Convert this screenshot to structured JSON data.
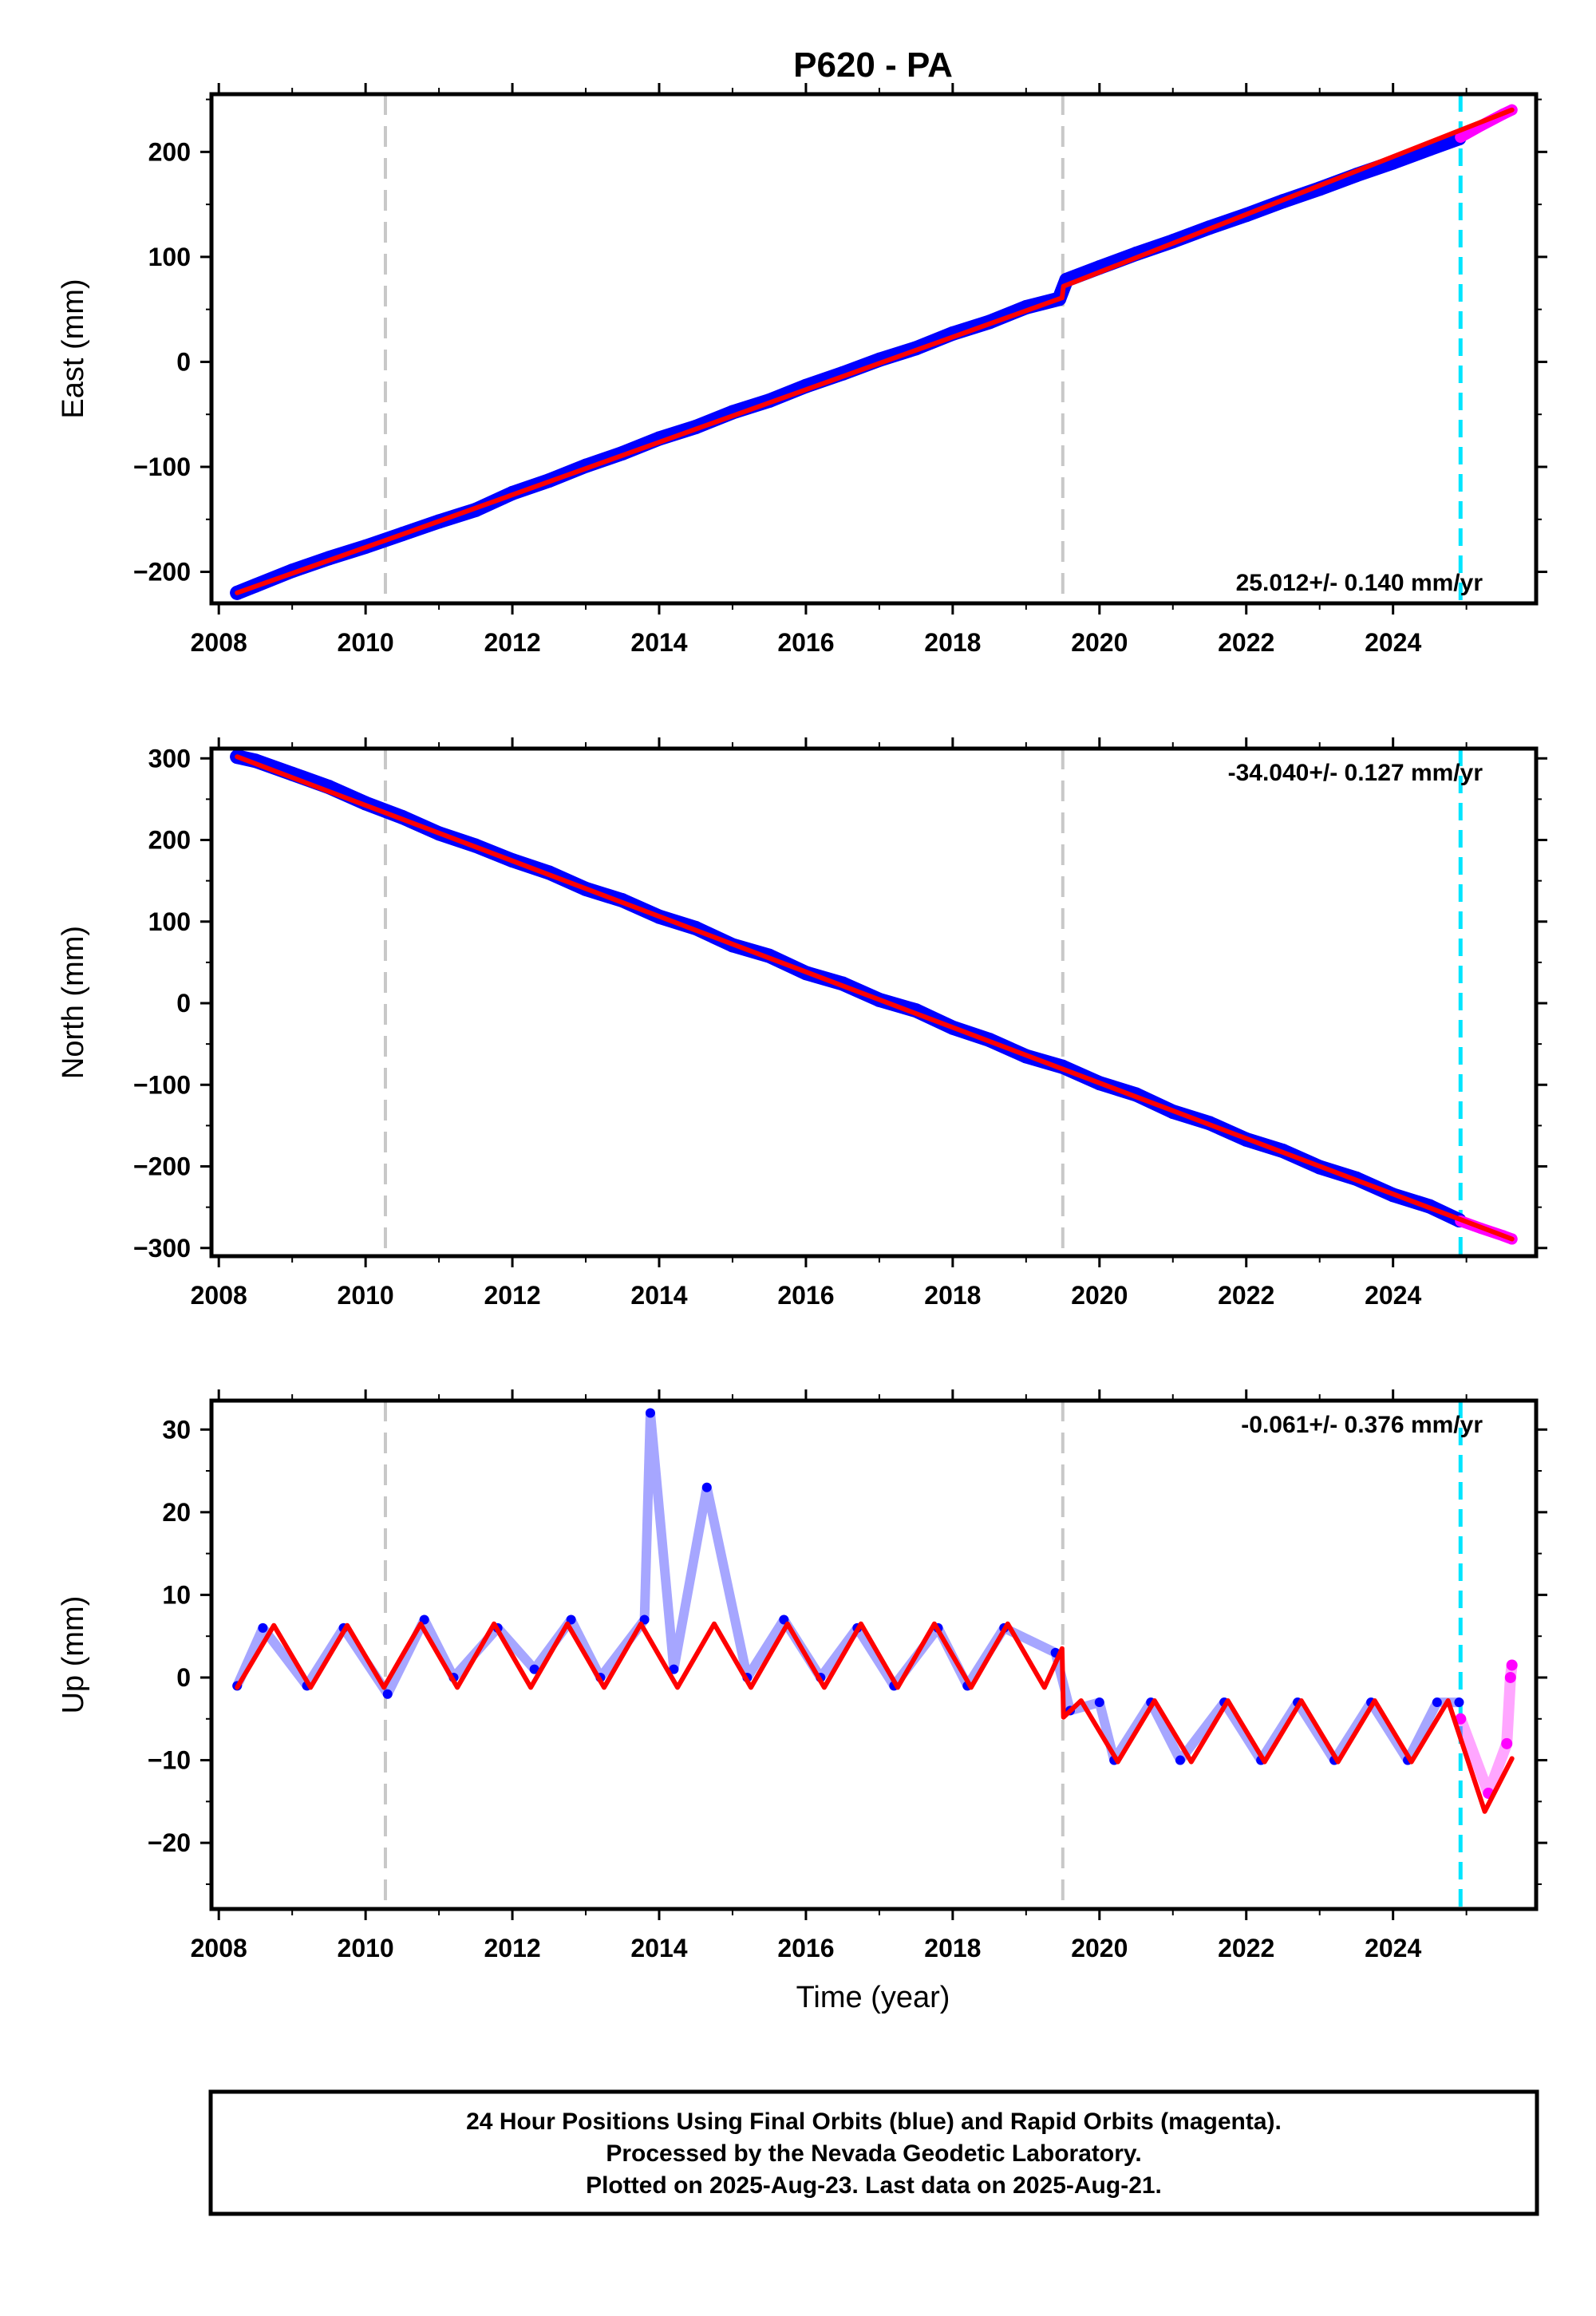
{
  "title": "P620 - PA",
  "xlabel": "Time (year)",
  "footer": {
    "line1": "24 Hour Positions Using Final Orbits (blue) and Rapid Orbits (magenta).",
    "line2": "Processed by the Nevada Geodetic Laboratory.",
    "line3": "Plotted on 2025-Aug-23. Last data on 2025-Aug-21."
  },
  "colors": {
    "final_orbits": "#0000ff",
    "rapid_orbits": "#ff00ff",
    "model": "#ff0000",
    "equipment_change": "#c8c8c8",
    "rapid_start": "#00e5ff"
  },
  "chart_data": [
    {
      "type": "scatter",
      "component": "east",
      "ylabel": "East (mm)",
      "rate_label": "25.012+/- 0.140 mm/yr",
      "rate_placement": "bottom-right",
      "xlim": [
        2007.9,
        2025.95
      ],
      "ylim": [
        -230,
        255
      ],
      "x_ticks": [
        2008,
        2010,
        2012,
        2014,
        2016,
        2018,
        2020,
        2022,
        2024
      ],
      "x_tick_labels": [
        "2008",
        "2010",
        "2012",
        "2014",
        "2016",
        "2018",
        "2020",
        "2022",
        "2024"
      ],
      "y_ticks": [
        -200,
        -100,
        0,
        100,
        200
      ],
      "y_tick_labels": [
        "−200",
        "−100",
        "0",
        "100",
        "200"
      ],
      "dashed_lines": [
        {
          "x": 2010.27,
          "style": "equipment_change"
        },
        {
          "x": 2019.5,
          "style": "equipment_change"
        },
        {
          "x": 2024.92,
          "style": "rapid_start"
        }
      ],
      "series": [
        {
          "role": "final_orbits",
          "x": [
            2008.25,
            2008.5,
            2009.0,
            2009.5,
            2010.0,
            2010.5,
            2011.0,
            2011.5,
            2012.0,
            2012.5,
            2013.0,
            2013.5,
            2014.0,
            2014.5,
            2015.0,
            2015.5,
            2016.0,
            2016.5,
            2017.0,
            2017.5,
            2018.0,
            2018.5,
            2019.0,
            2019.45,
            2019.55,
            2020.0,
            2020.5,
            2021.0,
            2021.5,
            2022.0,
            2022.5,
            2023.0,
            2023.5,
            2024.0,
            2024.5,
            2024.9
          ],
          "y": [
            -220,
            -213,
            -199,
            -187,
            -176,
            -164,
            -152,
            -141,
            -125,
            -113,
            -99,
            -87,
            -73,
            -62,
            -48,
            -37,
            -23,
            -11,
            2,
            13,
            27,
            38,
            52,
            60,
            78,
            90,
            103,
            115,
            128,
            140,
            153,
            165,
            178,
            190,
            203,
            213
          ]
        },
        {
          "role": "rapid_orbits",
          "x": [
            2024.92,
            2025.2,
            2025.5,
            2025.62
          ],
          "y": [
            214,
            225,
            236,
            240
          ]
        },
        {
          "role": "model",
          "x": [
            2008.25,
            2010.27,
            2019.49,
            2019.51,
            2025.62
          ],
          "y": [
            -220,
            -170,
            61,
            72,
            240
          ]
        }
      ]
    },
    {
      "type": "scatter",
      "component": "north",
      "ylabel": "North (mm)",
      "rate_label": "-34.040+/- 0.127 mm/yr",
      "rate_placement": "top-right",
      "xlim": [
        2007.9,
        2025.95
      ],
      "ylim": [
        -310,
        312
      ],
      "x_ticks": [
        2008,
        2010,
        2012,
        2014,
        2016,
        2018,
        2020,
        2022,
        2024
      ],
      "x_tick_labels": [
        "2008",
        "2010",
        "2012",
        "2014",
        "2016",
        "2018",
        "2020",
        "2022",
        "2024"
      ],
      "y_ticks": [
        -300,
        -200,
        -100,
        0,
        100,
        200,
        300
      ],
      "y_tick_labels": [
        "−300",
        "−200",
        "−100",
        "0",
        "100",
        "200",
        "300"
      ],
      "dashed_lines": [
        {
          "x": 2010.27,
          "style": "equipment_change"
        },
        {
          "x": 2019.5,
          "style": "equipment_change"
        },
        {
          "x": 2024.92,
          "style": "rapid_start"
        }
      ],
      "series": [
        {
          "role": "final_orbits",
          "x": [
            2008.25,
            2008.5,
            2009.0,
            2009.5,
            2010.0,
            2010.5,
            2011.0,
            2011.5,
            2012.0,
            2012.5,
            2013.0,
            2013.5,
            2014.0,
            2014.5,
            2015.0,
            2015.5,
            2016.0,
            2016.5,
            2017.0,
            2017.5,
            2018.0,
            2018.5,
            2019.0,
            2019.5,
            2020.0,
            2020.5,
            2021.0,
            2021.5,
            2022.0,
            2022.5,
            2023.0,
            2023.5,
            2024.0,
            2024.5,
            2024.9
          ],
          "y": [
            302,
            297,
            281,
            265,
            245,
            228,
            208,
            193,
            175,
            160,
            140,
            126,
            106,
            92,
            71,
            58,
            37,
            24,
            4,
            -9,
            -30,
            -45,
            -65,
            -78,
            -98,
            -112,
            -133,
            -147,
            -167,
            -181,
            -201,
            -215,
            -235,
            -249,
            -266
          ]
        },
        {
          "role": "rapid_orbits",
          "x": [
            2024.92,
            2025.2,
            2025.5,
            2025.62
          ],
          "y": [
            -267,
            -276,
            -285,
            -289
          ]
        },
        {
          "role": "model",
          "x": [
            2008.25,
            2025.62
          ],
          "y": [
            302,
            -289
          ]
        }
      ]
    },
    {
      "type": "scatter",
      "component": "up",
      "ylabel": "Up (mm)",
      "rate_label": "-0.061+/- 0.376 mm/yr",
      "rate_placement": "top-right",
      "xlim": [
        2007.9,
        2025.95
      ],
      "ylim": [
        -28,
        33.5
      ],
      "x_ticks": [
        2008,
        2010,
        2012,
        2014,
        2016,
        2018,
        2020,
        2022,
        2024
      ],
      "x_tick_labels": [
        "2008",
        "2010",
        "2012",
        "2014",
        "2016",
        "2018",
        "2020",
        "2022",
        "2024"
      ],
      "y_ticks": [
        -20,
        -10,
        0,
        10,
        20,
        30
      ],
      "y_tick_labels": [
        "−20",
        "−10",
        "0",
        "10",
        "20",
        "30"
      ],
      "dashed_lines": [
        {
          "x": 2010.27,
          "style": "equipment_change"
        },
        {
          "x": 2019.5,
          "style": "equipment_change"
        },
        {
          "x": 2024.92,
          "style": "rapid_start"
        }
      ],
      "series": [
        {
          "role": "final_orbits",
          "x": [
            2008.25,
            2008.6,
            2009.2,
            2009.7,
            2010.3,
            2010.8,
            2011.2,
            2011.8,
            2012.3,
            2012.8,
            2013.2,
            2013.8,
            2013.88,
            2014.2,
            2014.65,
            2015.2,
            2015.7,
            2016.2,
            2016.7,
            2017.2,
            2017.8,
            2018.2,
            2018.7,
            2019.4,
            2019.6,
            2020.0,
            2020.2,
            2020.7,
            2021.1,
            2021.7,
            2022.2,
            2022.7,
            2023.2,
            2023.7,
            2024.2,
            2024.6,
            2024.9
          ],
          "y": [
            -1,
            6,
            -1,
            6,
            -2,
            7,
            0,
            6,
            1,
            7,
            0,
            7,
            32,
            1,
            23,
            0,
            7,
            0,
            6,
            -1,
            6,
            -1,
            6,
            3,
            -4,
            -3,
            -10,
            -3,
            -10,
            -3,
            -10,
            -3,
            -10,
            -3,
            -10,
            -3,
            -3
          ]
        },
        {
          "role": "rapid_orbits",
          "x": [
            2024.92,
            2025.3,
            2025.55,
            2025.6,
            2025.62
          ],
          "y": [
            -5,
            -14,
            -8,
            0,
            1.5
          ]
        },
        {
          "role": "model",
          "x": [
            2008.25,
            2008.75,
            2009.25,
            2009.75,
            2010.25,
            2010.75,
            2011.25,
            2011.75,
            2012.25,
            2012.75,
            2013.25,
            2013.75,
            2014.25,
            2014.75,
            2015.25,
            2015.75,
            2016.25,
            2016.75,
            2017.25,
            2017.75,
            2018.25,
            2018.75,
            2019.25,
            2019.49,
            2019.51,
            2019.75,
            2020.25,
            2020.75,
            2021.25,
            2021.75,
            2022.25,
            2022.75,
            2023.25,
            2023.75,
            2024.25,
            2024.75,
            2025.25,
            2025.62
          ],
          "y": [
            -1.2,
            6.3,
            -1.2,
            6.3,
            -1.2,
            6.5,
            -1.2,
            6.5,
            -1.2,
            6.5,
            -1.2,
            6.5,
            -1.2,
            6.5,
            -1.2,
            6.5,
            -1.2,
            6.5,
            -1.2,
            6.5,
            -1.2,
            6.5,
            -1.2,
            3.5,
            -4.8,
            -2.8,
            -10.2,
            -2.8,
            -10.2,
            -2.8,
            -10.2,
            -2.8,
            -10.2,
            -2.8,
            -10.2,
            -2.8,
            -16.2,
            -9.8
          ]
        }
      ]
    }
  ]
}
